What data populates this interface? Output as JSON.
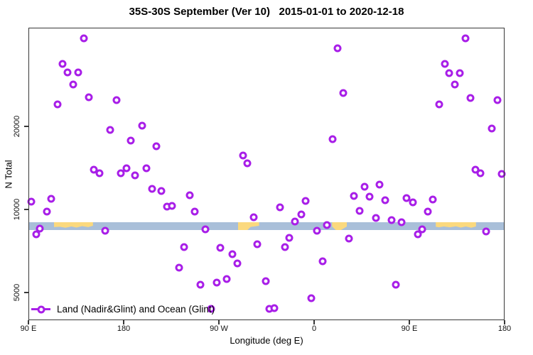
{
  "title": "35S-30S September (Ver 10)   2015-01-01 to 2020-12-18",
  "colors": {
    "marker": "#A81EE8",
    "ocean": "#A9BFD9",
    "land": "#FBD97E",
    "axis": "#383838"
  },
  "chart_data": {
    "type": "scatter",
    "title": "35S-30S September (Ver 10)   2015-01-01 to 2020-12-18",
    "xlabel": "Longitude (deg E)",
    "ylabel": "N Total",
    "y_scale": "log",
    "ylim": [
      3900,
      46000
    ],
    "y_ticks": [
      5000,
      10000,
      20000
    ],
    "x_axis_note": "d = degrees eastward from 90E along wrapped axis (0=90E, 90=180, 180=90W, 270=0, 360=90E, 450=180)",
    "x_ticks": [
      {
        "d": 0,
        "label": "90 E"
      },
      {
        "d": 90,
        "label": "180"
      },
      {
        "d": 180,
        "label": "90 W"
      },
      {
        "d": 270,
        "label": "0"
      },
      {
        "d": 360,
        "label": "90 E"
      },
      {
        "d": 450,
        "label": "180"
      }
    ],
    "legend": {
      "label": "Land (Nadir&Glint) and Ocean (Glint)",
      "marker": "open-circle",
      "position": "bottom-left"
    },
    "map_band": {
      "description": "latitude-band strip map at N≈8700, ocean blue with land patches",
      "n_top": 8990,
      "n_bottom": 8420,
      "land_patches": [
        {
          "label": "Australia",
          "d0": 24,
          "d1": 61
        },
        {
          "label": "South America",
          "d0": 198,
          "d1": 218
        },
        {
          "label": "Southern Africa",
          "d0": 287,
          "d1": 301
        },
        {
          "label": "Australia",
          "d0": 385,
          "d1": 423
        }
      ]
    },
    "series": [
      {
        "name": "Land (Nadir&Glint) and Ocean (Glint)",
        "points": [
          {
            "d": 52.4,
            "n": 41700
          },
          {
            "d": 32.2,
            "n": 33700
          },
          {
            "d": 36.9,
            "n": 31400
          },
          {
            "d": 47.0,
            "n": 31400
          },
          {
            "d": 42.3,
            "n": 28400
          },
          {
            "d": 57.1,
            "n": 25500
          },
          {
            "d": 83.3,
            "n": 24900
          },
          {
            "d": 27.5,
            "n": 24000
          },
          {
            "d": 77.2,
            "n": 19400
          },
          {
            "d": 107.5,
            "n": 20100
          },
          {
            "d": 96.7,
            "n": 17800
          },
          {
            "d": 292.1,
            "n": 38400
          },
          {
            "d": 287.4,
            "n": 18000
          },
          {
            "d": 413.0,
            "n": 41700
          },
          {
            "d": 393.6,
            "n": 33700
          },
          {
            "d": 397.6,
            "n": 31200
          },
          {
            "d": 407.7,
            "n": 31200
          },
          {
            "d": 403.0,
            "n": 28400
          },
          {
            "d": 297.5,
            "n": 26400
          },
          {
            "d": 417.7,
            "n": 25350
          },
          {
            "d": 443.2,
            "n": 24900
          },
          {
            "d": 388.2,
            "n": 24000
          },
          {
            "d": 437.9,
            "n": 19650
          },
          {
            "d": 120.9,
            "n": 16950
          },
          {
            "d": 61.8,
            "n": 13900
          },
          {
            "d": 67.2,
            "n": 13500
          },
          {
            "d": 87.1,
            "n": 13500
          },
          {
            "d": 92.9,
            "n": 14100
          },
          {
            "d": 100.7,
            "n": 13300
          },
          {
            "d": 111.7,
            "n": 14130
          },
          {
            "d": 116.6,
            "n": 11900
          },
          {
            "d": 125.8,
            "n": 11690
          },
          {
            "d": 2.7,
            "n": 10670
          },
          {
            "d": 21.5,
            "n": 10930
          },
          {
            "d": 17.5,
            "n": 9820
          },
          {
            "d": 131.0,
            "n": 10240
          },
          {
            "d": 135.7,
            "n": 10300
          },
          {
            "d": 7.4,
            "n": 8130
          },
          {
            "d": 10.7,
            "n": 8520
          },
          {
            "d": 72.5,
            "n": 8370
          },
          {
            "d": 202.8,
            "n": 15690
          },
          {
            "d": 206.8,
            "n": 14700
          },
          {
            "d": 152.5,
            "n": 11260
          },
          {
            "d": 157.2,
            "n": 9820
          },
          {
            "d": 237.7,
            "n": 10180
          },
          {
            "d": 261.9,
            "n": 10740
          },
          {
            "d": 257.9,
            "n": 9590
          },
          {
            "d": 212.9,
            "n": 9370
          },
          {
            "d": 251.9,
            "n": 9040
          },
          {
            "d": 167.2,
            "n": 8470
          },
          {
            "d": 272.7,
            "n": 8370
          },
          {
            "d": 147.1,
            "n": 7310
          },
          {
            "d": 181.3,
            "n": 7260
          },
          {
            "d": 192.7,
            "n": 6880
          },
          {
            "d": 216.3,
            "n": 7480
          },
          {
            "d": 242.4,
            "n": 7310
          },
          {
            "d": 246.5,
            "n": 7890
          },
          {
            "d": 422.4,
            "n": 13930
          },
          {
            "d": 427.1,
            "n": 13530
          },
          {
            "d": 447.2,
            "n": 13450
          },
          {
            "d": 317.7,
            "n": 12090
          },
          {
            "d": 331.8,
            "n": 12300
          },
          {
            "d": 307.6,
            "n": 11190
          },
          {
            "d": 322.4,
            "n": 11120
          },
          {
            "d": 337.2,
            "n": 10800
          },
          {
            "d": 357.3,
            "n": 10990
          },
          {
            "d": 363.3,
            "n": 10610
          },
          {
            "d": 382.1,
            "n": 10860
          },
          {
            "d": 313.0,
            "n": 9880
          },
          {
            "d": 377.4,
            "n": 9820
          },
          {
            "d": 328.4,
            "n": 9310
          },
          {
            "d": 343.2,
            "n": 9150
          },
          {
            "d": 352.6,
            "n": 8990
          },
          {
            "d": 282.1,
            "n": 8780
          },
          {
            "d": 372.0,
            "n": 8470
          },
          {
            "d": 368.0,
            "n": 8130
          },
          {
            "d": 432.5,
            "n": 8320
          },
          {
            "d": 302.9,
            "n": 7840
          },
          {
            "d": 142.4,
            "n": 6150
          },
          {
            "d": 197.4,
            "n": 6370
          },
          {
            "d": 162.5,
            "n": 5330
          },
          {
            "d": 178.0,
            "n": 5430
          },
          {
            "d": 187.4,
            "n": 5590
          },
          {
            "d": 224.3,
            "n": 5500
          },
          {
            "d": 172.6,
            "n": 4360
          },
          {
            "d": 227.7,
            "n": 4360
          },
          {
            "d": 232.4,
            "n": 4390
          },
          {
            "d": 267.3,
            "n": 4770
          },
          {
            "d": 278.0,
            "n": 6490
          },
          {
            "d": 347.2,
            "n": 5330
          }
        ]
      }
    ]
  }
}
